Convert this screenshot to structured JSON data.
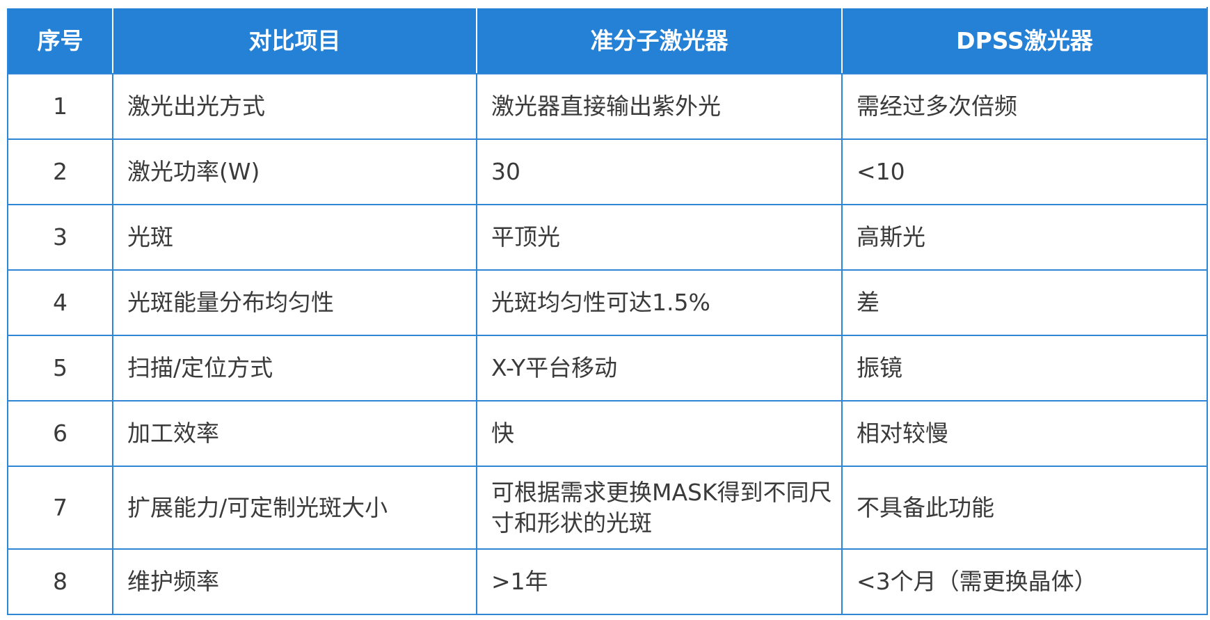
{
  "headers": [
    "序号",
    "对比项目",
    "准分子激光器",
    "DPSS激光器"
  ],
  "rows": [
    {
      "no": "1",
      "item": "激光出光方式",
      "excimer": "激光器直接输出紫外光",
      "dpss": "需经过多次倍频"
    },
    {
      "no": "2",
      "item": "激光功率(W)",
      "excimer": "30",
      "dpss": "<10"
    },
    {
      "no": "3",
      "item": "光斑",
      "excimer": "平顶光",
      "dpss": "高斯光"
    },
    {
      "no": "4",
      "item": "光斑能量分布均匀性",
      "excimer": "光斑均匀性可达1.5%",
      "dpss": "差"
    },
    {
      "no": "5",
      "item": "扫描/定位方式",
      "excimer": "X-Y平台移动",
      "dpss": "振镜"
    },
    {
      "no": "6",
      "item": "加工效率",
      "excimer": "快",
      "dpss": "相对较慢"
    },
    {
      "no": "7",
      "item": "扩展能力/可定制光斑大小",
      "excimer": "可根据需求更换MASK得到不同尺寸和形状的光斑",
      "dpss": "不具备此功能"
    },
    {
      "no": "8",
      "item": "维护频率",
      "excimer": ">1年",
      "dpss": "<3个月（需更换晶体）"
    }
  ],
  "colors": {
    "header_bg": "#2581d6",
    "border": "#2f86d6",
    "text": "#3a3a3a"
  }
}
